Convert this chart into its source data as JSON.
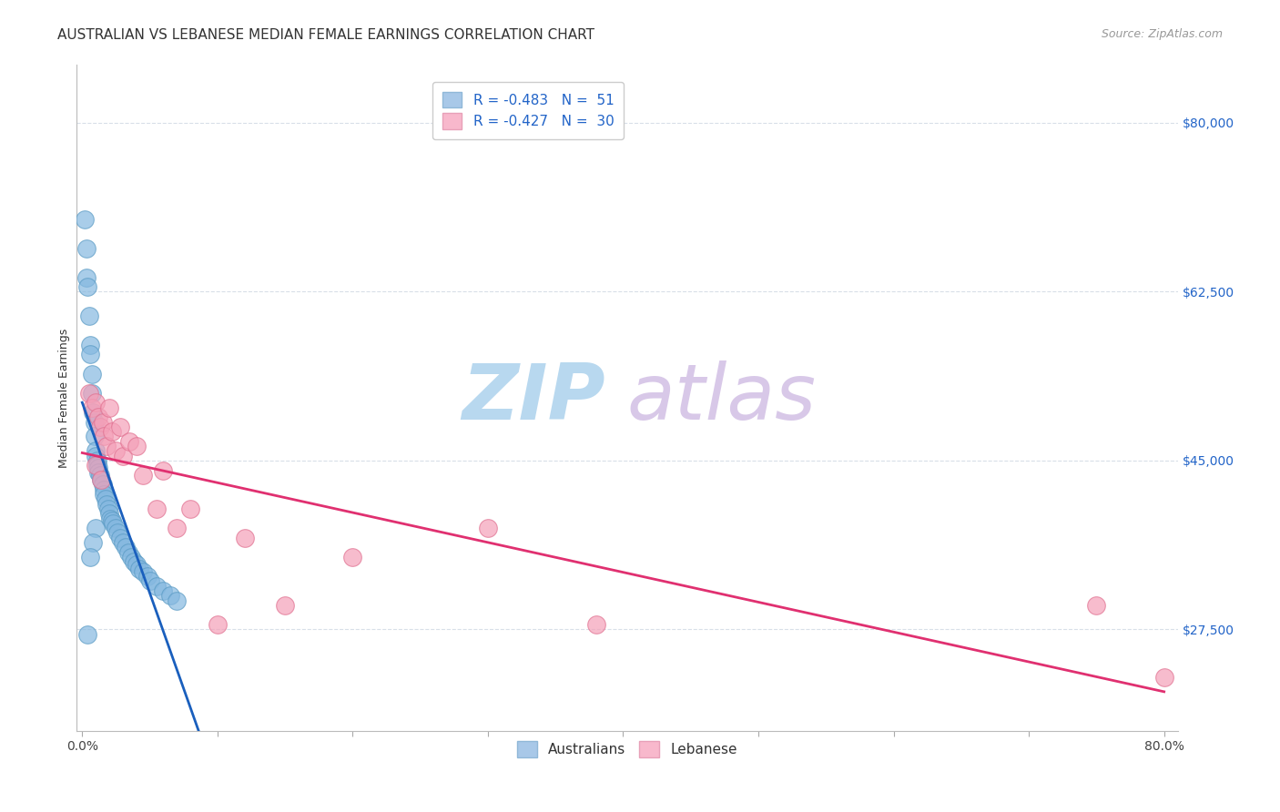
{
  "title": "AUSTRALIAN VS LEBANESE MEDIAN FEMALE EARNINGS CORRELATION CHART",
  "source": "Source: ZipAtlas.com",
  "ylabel": "Median Female Earnings",
  "ytick_labels": [
    "$27,500",
    "$45,000",
    "$62,500",
    "$80,000"
  ],
  "ytick_values": [
    27500,
    45000,
    62500,
    80000
  ],
  "ymin": 17000,
  "ymax": 86000,
  "xmin": -0.004,
  "xmax": 0.81,
  "australians_color": "#85b8e0",
  "australians_edge": "#5a9bc4",
  "lebanese_color": "#f4a0b8",
  "lebanese_edge": "#e07090",
  "australian_x": [
    0.002,
    0.003,
    0.003,
    0.004,
    0.005,
    0.006,
    0.006,
    0.007,
    0.007,
    0.008,
    0.009,
    0.009,
    0.01,
    0.01,
    0.011,
    0.011,
    0.012,
    0.012,
    0.013,
    0.014,
    0.015,
    0.016,
    0.016,
    0.017,
    0.018,
    0.019,
    0.02,
    0.021,
    0.022,
    0.023,
    0.025,
    0.026,
    0.028,
    0.03,
    0.032,
    0.034,
    0.036,
    0.038,
    0.04,
    0.042,
    0.045,
    0.048,
    0.05,
    0.055,
    0.06,
    0.065,
    0.07,
    0.01,
    0.008,
    0.006,
    0.004
  ],
  "australian_y": [
    70000,
    67000,
    64000,
    63000,
    60000,
    57000,
    56000,
    54000,
    52000,
    50000,
    49000,
    47500,
    46000,
    45500,
    45000,
    44500,
    44200,
    43800,
    43500,
    43000,
    42500,
    42000,
    41500,
    41000,
    40500,
    40000,
    39500,
    39000,
    38800,
    38500,
    38000,
    37500,
    37000,
    36500,
    36000,
    35500,
    35000,
    34500,
    34200,
    33800,
    33500,
    33000,
    32500,
    32000,
    31500,
    31000,
    30500,
    38000,
    36500,
    35000,
    27000
  ],
  "lebanese_x": [
    0.005,
    0.007,
    0.01,
    0.012,
    0.013,
    0.015,
    0.016,
    0.018,
    0.02,
    0.022,
    0.025,
    0.028,
    0.03,
    0.035,
    0.04,
    0.045,
    0.06,
    0.07,
    0.08,
    0.12,
    0.15,
    0.2,
    0.3,
    0.38,
    0.75,
    0.8,
    0.01,
    0.014,
    0.055,
    0.1
  ],
  "lebanese_y": [
    52000,
    50500,
    51000,
    49500,
    48500,
    49000,
    47500,
    46500,
    50500,
    48000,
    46000,
    48500,
    45500,
    47000,
    46500,
    43500,
    44000,
    38000,
    40000,
    37000,
    30000,
    35000,
    38000,
    28000,
    30000,
    22500,
    44500,
    43000,
    40000,
    28000
  ],
  "watermark_zip": "ZIP",
  "watermark_atlas": "atlas",
  "watermark_color": "#cce4f5",
  "trendline_aus_color": "#1a5fbd",
  "trendline_leb_color": "#e03070",
  "trendline_aus_x_end": 0.2,
  "grid_color": "#d8dfe8",
  "background_color": "#ffffff",
  "title_fontsize": 11,
  "axis_label_fontsize": 9,
  "tick_fontsize": 10,
  "legend_fontsize": 11,
  "legend_r_aus": "R = -0.483",
  "legend_n_aus": "N =  51",
  "legend_r_leb": "R = -0.427",
  "legend_n_leb": "N =  30",
  "bottom_legend_australians": "Australians",
  "bottom_legend_lebanese": "Lebanese"
}
